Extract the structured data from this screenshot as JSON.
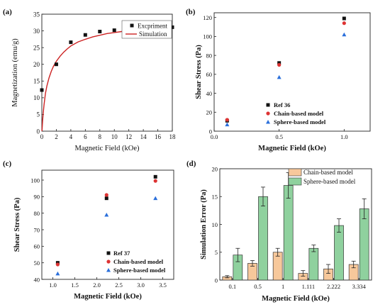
{
  "panel_labels": [
    "(a)",
    "(b)",
    "(c)",
    "(d)"
  ],
  "chart_data": [
    {
      "id": "a",
      "type": "scatter",
      "xlabel": "Magnetic Field (kOe)",
      "ylabel": "Magnetization (emu/g)",
      "xlim": [
        0,
        18
      ],
      "ylim": [
        0,
        35
      ],
      "xticks": [
        0,
        2,
        4,
        6,
        8,
        10,
        12,
        14,
        16,
        18
      ],
      "yticks": [
        0,
        5,
        10,
        15,
        20,
        25,
        30,
        35
      ],
      "legend_position": "top-right",
      "series": [
        {
          "name": "Excpriment",
          "marker": "square",
          "color": "#111111",
          "x": [
            0,
            2,
            4,
            6,
            8,
            10,
            12,
            14,
            16,
            18
          ],
          "y": [
            12.3,
            20.0,
            26.6,
            28.8,
            29.8,
            30.2,
            30.5,
            30.7,
            30.9,
            31.1
          ]
        },
        {
          "name": "Simulation",
          "marker": "line",
          "color": "#cc2222",
          "x": [
            0.02,
            0.1,
            0.2,
            0.3,
            0.5,
            0.7,
            1.0,
            1.3,
            1.6,
            2.0,
            2.5,
            3.0,
            3.5,
            4.0,
            5.0,
            6.0,
            7.0,
            8.0,
            9.0,
            10.0,
            11.0,
            12.0,
            13.0,
            14.0,
            15.0,
            16.0,
            17.0,
            18.0
          ],
          "y": [
            0.0,
            2.9,
            5.5,
            7.9,
            11.3,
            13.6,
            16.0,
            17.9,
            19.4,
            20.9,
            22.4,
            23.6,
            24.6,
            25.5,
            26.7,
            27.5,
            28.2,
            28.7,
            29.2,
            29.5,
            29.8,
            30.1,
            30.3,
            30.5,
            30.6,
            30.8,
            30.9,
            31.0
          ]
        }
      ]
    },
    {
      "id": "b",
      "type": "scatter",
      "xlabel": "Magnetic Field (kOe)",
      "ylabel": "Shear Stress (Pa)",
      "xlim": [
        0,
        1.2
      ],
      "ylim": [
        0,
        125
      ],
      "xticks": [
        0.0,
        0.5,
        1.0
      ],
      "xticklabels": [
        "0.0",
        "0.5",
        "1.0"
      ],
      "yticks": [
        0,
        20,
        40,
        60,
        80,
        100,
        120
      ],
      "legend_position": "bottom-right",
      "series": [
        {
          "name": "Ref 36",
          "marker": "square",
          "color": "#111111",
          "x": [
            0.1,
            0.5,
            1.0
          ],
          "y": [
            11,
            72,
            119
          ]
        },
        {
          "name": "Chain-based model",
          "marker": "circle",
          "color": "#dd3333",
          "x": [
            0.1,
            0.5,
            1.0
          ],
          "y": [
            12,
            70,
            114
          ]
        },
        {
          "name": "Sphere-based model",
          "marker": "triangle",
          "color": "#2a6fdb",
          "x": [
            0.1,
            0.5,
            1.0
          ],
          "y": [
            7,
            57,
            102
          ]
        }
      ]
    },
    {
      "id": "c",
      "type": "scatter",
      "xlabel": "Magnetic Field (kOe)",
      "ylabel": "Shear Stress (Pa)",
      "xlim": [
        0.75,
        3.75
      ],
      "ylim": [
        40,
        106
      ],
      "xticks": [
        1.0,
        1.5,
        2.0,
        2.5,
        3.0,
        3.5
      ],
      "xticklabels": [
        "1.0",
        "1.5",
        "2.0",
        "2.5",
        "3.0",
        "3.5"
      ],
      "yticks": [
        40,
        50,
        60,
        70,
        80,
        90,
        100
      ],
      "legend_position": "bottom-right",
      "series": [
        {
          "name": "Ref 37",
          "marker": "square",
          "color": "#111111",
          "x": [
            1.111,
            2.222,
            3.334
          ],
          "y": [
            50,
            89,
            102
          ]
        },
        {
          "name": "Chain-based model",
          "marker": "circle",
          "color": "#dd3333",
          "x": [
            1.111,
            2.222,
            3.334
          ],
          "y": [
            49,
            91,
            99.5
          ]
        },
        {
          "name": "Sphere-based model",
          "marker": "triangle",
          "color": "#2a6fdb",
          "x": [
            1.111,
            2.222,
            3.334
          ],
          "y": [
            43.5,
            79,
            89
          ]
        }
      ]
    },
    {
      "id": "d",
      "type": "bar",
      "xlabel": "Magnetic Field (kOe)",
      "ylabel": "Simulation Error (Pa)",
      "ylim": [
        0,
        20
      ],
      "yticks": [
        0,
        5,
        10,
        15,
        20
      ],
      "categories": [
        "0.1",
        "0.5",
        "1",
        "1.111",
        "2.222",
        "3.334"
      ],
      "legend_position": "top-right",
      "series": [
        {
          "name": "Chain-based model",
          "color": "#f7c89b",
          "values": [
            0.6,
            3.0,
            5.0,
            1.2,
            2.0,
            2.8
          ],
          "errors": [
            0.2,
            0.5,
            0.7,
            0.5,
            0.8,
            0.6
          ]
        },
        {
          "name": "Sphere-based model",
          "color": "#8fd19e",
          "values": [
            4.5,
            15.0,
            17.0,
            5.7,
            9.8,
            12.8
          ],
          "errors": [
            1.2,
            1.7,
            2.3,
            0.6,
            1.2,
            1.8
          ]
        }
      ]
    }
  ]
}
